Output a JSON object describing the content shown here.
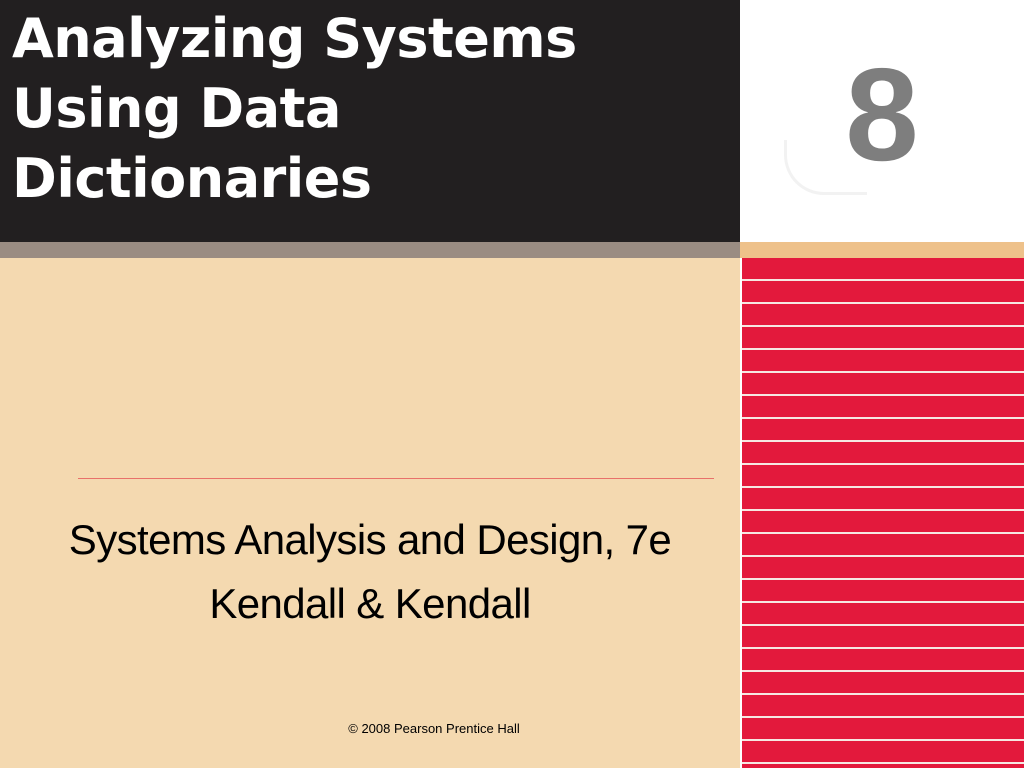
{
  "slide": {
    "title": "Analyzing Systems\nUsing Data\nDictionaries",
    "chapter_number": "8",
    "subtitle_line1": "Systems Analysis and Design, 7e",
    "subtitle_line2": "Kendall & Kendall",
    "copyright": "© 2008 Pearson Prentice Hall"
  },
  "colors": {
    "title_background": "#221f20",
    "slide_background": "#f4d9b0",
    "stripe_red": "#e3193c",
    "chapter_number_gray": "#7e7e7e",
    "rule_red": "#e8716a"
  }
}
